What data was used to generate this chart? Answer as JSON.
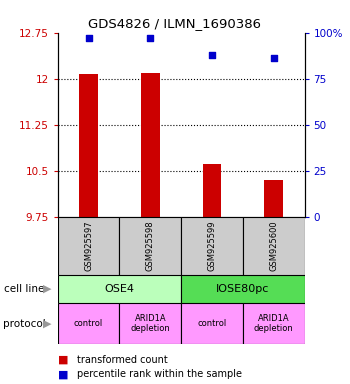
{
  "title": "GDS4826 / ILMN_1690386",
  "samples": [
    "GSM925597",
    "GSM925598",
    "GSM925599",
    "GSM925600"
  ],
  "bar_values": [
    12.08,
    12.1,
    10.62,
    10.35
  ],
  "scatter_values": [
    97,
    97,
    88,
    86
  ],
  "ylim_left": [
    9.75,
    12.75
  ],
  "ylim_right": [
    0,
    100
  ],
  "yticks_left": [
    9.75,
    10.5,
    11.25,
    12.0,
    12.75
  ],
  "ytick_labels_left": [
    "9.75",
    "10.5",
    "11.25",
    "12",
    "12.75"
  ],
  "yticks_right": [
    0,
    25,
    50,
    75,
    100
  ],
  "ytick_labels_right": [
    "0",
    "25",
    "50",
    "75",
    "100%"
  ],
  "bar_color": "#cc0000",
  "scatter_color": "#0000cc",
  "bar_width": 0.3,
  "cell_line_labels": [
    "OSE4",
    "IOSE80pc"
  ],
  "cell_line_spans": [
    [
      0,
      2
    ],
    [
      2,
      4
    ]
  ],
  "cell_line_colors": [
    "#bbffbb",
    "#55dd55"
  ],
  "protocol_labels": [
    "control",
    "ARID1A\ndepletion",
    "control",
    "ARID1A\ndepletion"
  ],
  "protocol_color": "#ff99ff",
  "legend_bar_label": "transformed count",
  "legend_scatter_label": "percentile rank within the sample",
  "left_tick_color": "#cc0000",
  "right_tick_color": "#0000cc",
  "sample_box_color": "#cccccc"
}
